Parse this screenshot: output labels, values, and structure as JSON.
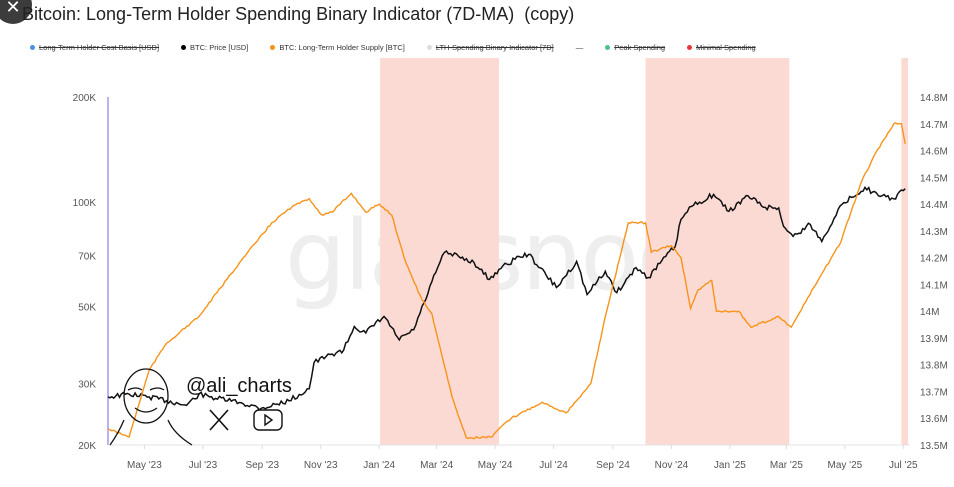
{
  "title": "Bitcoin: Long-Term Holder Spending Binary Indicator (7D-MA)  (copy)",
  "close_icon": "close-icon",
  "legend": [
    {
      "label": "Long-Term Holder Cost Basis [USD]",
      "color": "#4a90e2",
      "hidden": true
    },
    {
      "label": "BTC: Price [USD]",
      "color": "#000000",
      "hidden": false
    },
    {
      "label": "BTC: Long-Term Holder Supply [BTC]",
      "color": "#f7931a",
      "hidden": false
    },
    {
      "label": "LTH-Spending Binary Indicator [7D]",
      "color": "#dddddd",
      "hidden": true
    },
    {
      "label": "—",
      "color": "",
      "hidden": false
    },
    {
      "label": "Peak Spending",
      "color": "#4cc38a",
      "hidden": true
    },
    {
      "label": "Minimal Spending",
      "color": "#e5383b",
      "hidden": true
    }
  ],
  "watermark": "glassnode",
  "branding": {
    "handle": "@ali_charts",
    "icons": [
      "x-logo-icon",
      "youtube-icon"
    ]
  },
  "chart_data": {
    "type": "line",
    "x_ticks": [
      "May '23",
      "Jul '23",
      "Sep '23",
      "Nov '23",
      "Jan '24",
      "Mar '24",
      "May '24",
      "Jul '24",
      "Sep '24",
      "Nov '24",
      "Jan '25",
      "Mar '25",
      "May '25",
      "Jul '25"
    ],
    "x_tick_dates": [
      "2023-05-01",
      "2023-07-01",
      "2023-09-01",
      "2023-11-01",
      "2024-01-01",
      "2024-03-01",
      "2024-05-01",
      "2024-07-01",
      "2024-09-01",
      "2024-11-01",
      "2025-01-01",
      "2025-03-01",
      "2025-05-01",
      "2025-07-01"
    ],
    "x_range": [
      "2023-03-24",
      "2025-07-08"
    ],
    "y_left": {
      "scale": "log",
      "range": [
        20000,
        200000
      ],
      "ticks": [
        20000,
        30000,
        50000,
        70000,
        100000,
        200000
      ],
      "tick_labels": [
        "20K",
        "30K",
        "50K",
        "70K",
        "100K",
        "200K"
      ]
    },
    "y_right": {
      "scale": "linear",
      "range": [
        13.5,
        14.8
      ],
      "ticks": [
        13.5,
        13.6,
        13.7,
        13.8,
        13.9,
        14.0,
        14.1,
        14.2,
        14.3,
        14.4,
        14.5,
        14.6,
        14.7,
        14.8
      ],
      "tick_labels": [
        "13.5M",
        "13.6M",
        "13.7M",
        "13.8M",
        "13.9M",
        "14M",
        "14.1M",
        "14.2M",
        "14.3M",
        "14.4M",
        "14.5M",
        "14.6M",
        "14.7M",
        "14.8M"
      ]
    },
    "shaded_periods": [
      {
        "start": "2024-01-02",
        "end": "2024-05-05",
        "color": "#fcdad4"
      },
      {
        "start": "2024-10-05",
        "end": "2025-03-04",
        "color": "#fcdad4"
      },
      {
        "start": "2025-06-29",
        "end": "2025-07-06",
        "color": "#fcdad4"
      }
    ],
    "series": [
      {
        "name": "BTC: Price [USD]",
        "axis": "left",
        "color": "#111111",
        "points": [
          [
            "2023-03-24",
            27500
          ],
          [
            "2023-04-15",
            28000
          ],
          [
            "2023-05-06",
            27500
          ],
          [
            "2023-05-24",
            26800
          ],
          [
            "2023-06-14",
            26000
          ],
          [
            "2023-06-27",
            28000
          ],
          [
            "2023-07-08",
            27500
          ],
          [
            "2023-08-08",
            26500
          ],
          [
            "2023-08-31",
            25500
          ],
          [
            "2023-09-29",
            26800
          ],
          [
            "2023-10-20",
            29000
          ],
          [
            "2023-10-25",
            34500
          ],
          [
            "2023-11-13",
            36500
          ],
          [
            "2023-11-25",
            37500
          ],
          [
            "2023-12-06",
            43800
          ],
          [
            "2023-12-18",
            42000
          ],
          [
            "2024-01-06",
            46800
          ],
          [
            "2024-01-22",
            40100
          ],
          [
            "2024-02-06",
            42900
          ],
          [
            "2024-02-17",
            51300
          ],
          [
            "2024-02-29",
            62600
          ],
          [
            "2024-03-09",
            71500
          ],
          [
            "2024-03-24",
            69600
          ],
          [
            "2024-04-09",
            66900
          ],
          [
            "2024-04-25",
            59800
          ],
          [
            "2024-05-05",
            63900
          ],
          [
            "2024-05-26",
            69600
          ],
          [
            "2024-06-05",
            70600
          ],
          [
            "2024-07-04",
            56700
          ],
          [
            "2024-07-25",
            67400
          ],
          [
            "2024-08-05",
            54100
          ],
          [
            "2024-08-24",
            63100
          ],
          [
            "2024-09-05",
            54800
          ],
          [
            "2024-09-25",
            64700
          ],
          [
            "2024-10-08",
            60600
          ],
          [
            "2024-10-26",
            69600
          ],
          [
            "2024-11-05",
            74400
          ],
          [
            "2024-11-11",
            89000
          ],
          [
            "2024-11-22",
            97000
          ],
          [
            "2024-12-15",
            105000
          ],
          [
            "2024-12-31",
            93900
          ],
          [
            "2025-01-20",
            104000
          ],
          [
            "2025-02-07",
            96400
          ],
          [
            "2025-02-21",
            96000
          ],
          [
            "2025-02-26",
            85000
          ],
          [
            "2025-03-08",
            79500
          ],
          [
            "2025-03-26",
            86100
          ],
          [
            "2025-04-07",
            76900
          ],
          [
            "2025-04-24",
            95100
          ],
          [
            "2025-05-08",
            103000
          ],
          [
            "2025-05-22",
            110000
          ],
          [
            "2025-06-05",
            104000
          ],
          [
            "2025-06-21",
            102000
          ],
          [
            "2025-07-03",
            109000
          ]
        ]
      },
      {
        "name": "BTC: Long-Term Holder Supply [BTC]",
        "axis": "right",
        "color": "#f7931a",
        "points": [
          [
            "2023-03-24",
            13.56
          ],
          [
            "2023-04-15",
            13.53
          ],
          [
            "2023-05-06",
            13.78
          ],
          [
            "2023-05-24",
            13.88
          ],
          [
            "2023-06-27",
            13.98
          ],
          [
            "2023-08-08",
            14.18
          ],
          [
            "2023-09-11",
            14.33
          ],
          [
            "2023-10-02",
            14.39
          ],
          [
            "2023-10-20",
            14.42
          ],
          [
            "2023-11-02",
            14.36
          ],
          [
            "2023-11-13",
            14.37
          ],
          [
            "2023-12-03",
            14.44
          ],
          [
            "2023-12-18",
            14.37
          ],
          [
            "2024-01-01",
            14.4
          ],
          [
            "2024-01-14",
            14.36
          ],
          [
            "2024-01-29",
            14.18
          ],
          [
            "2024-02-15",
            14.04
          ],
          [
            "2024-02-25",
            13.99
          ],
          [
            "2024-03-17",
            13.68
          ],
          [
            "2024-04-01",
            13.526
          ],
          [
            "2024-04-28",
            13.53
          ],
          [
            "2024-05-05",
            13.56
          ],
          [
            "2024-05-18",
            13.6
          ],
          [
            "2024-06-19",
            13.66
          ],
          [
            "2024-07-14",
            13.62
          ],
          [
            "2024-07-29",
            13.68
          ],
          [
            "2024-08-09",
            13.73
          ],
          [
            "2024-08-24",
            13.98
          ],
          [
            "2024-09-17",
            14.33
          ],
          [
            "2024-10-05",
            14.33
          ],
          [
            "2024-10-11",
            14.22
          ],
          [
            "2024-11-01",
            14.245
          ],
          [
            "2024-11-11",
            14.2
          ],
          [
            "2024-11-21",
            14.01
          ],
          [
            "2024-11-29",
            14.08
          ],
          [
            "2024-12-13",
            14.115
          ],
          [
            "2024-12-18",
            14.0
          ],
          [
            "2025-01-10",
            14.0
          ],
          [
            "2025-01-23",
            13.94
          ],
          [
            "2025-02-21",
            13.98
          ],
          [
            "2025-03-06",
            13.94
          ],
          [
            "2025-04-03",
            14.115
          ],
          [
            "2025-04-27",
            14.26
          ],
          [
            "2025-05-18",
            14.48
          ],
          [
            "2025-06-02",
            14.59
          ],
          [
            "2025-06-21",
            14.7
          ],
          [
            "2025-06-29",
            14.7
          ],
          [
            "2025-07-03",
            14.625
          ]
        ]
      }
    ]
  }
}
